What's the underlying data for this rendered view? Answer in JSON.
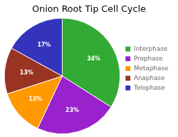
{
  "chart_data": {
    "type": "pie",
    "title": "Onion Root Tip Cell Cycle",
    "categories": [
      "Interphase",
      "Prophase",
      "Metaphase",
      "Anaphase",
      "Telophase"
    ],
    "values": [
      34,
      23,
      13,
      13,
      17
    ],
    "value_labels": [
      "34%",
      "23%",
      "13%",
      "13%",
      "17%"
    ],
    "colors": [
      "#33aa33",
      "#9922cc",
      "#ff9900",
      "#993322",
      "#3333bb"
    ],
    "data_labels": true,
    "legend": "right"
  }
}
